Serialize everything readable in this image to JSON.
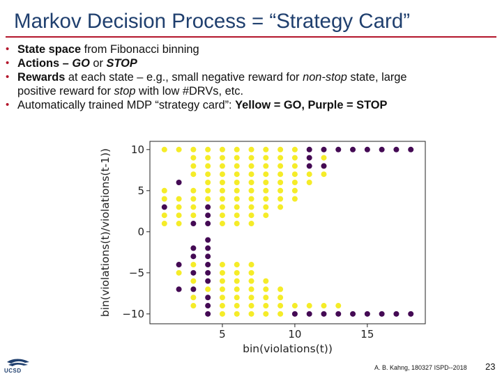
{
  "slide": {
    "title": "Markov Decision Process = “Strategy Card”",
    "bullets": [
      {
        "parts": [
          {
            "text": "State space",
            "style": "b"
          },
          {
            "text": " from Fibonacci binning",
            "style": ""
          }
        ]
      },
      {
        "parts": [
          {
            "text": "Actions – ",
            "style": "b"
          },
          {
            "text": "GO",
            "style": "bi"
          },
          {
            "text": " or ",
            "style": ""
          },
          {
            "text": "STOP",
            "style": "bi"
          }
        ]
      },
      {
        "parts": [
          {
            "text": "Rewards",
            "style": "b"
          },
          {
            "text": " at each state – e.g., small negative reward for ",
            "style": ""
          },
          {
            "text": "non-stop",
            "style": "i"
          },
          {
            "text": " state, large",
            "style": ""
          },
          {
            "text": "positive reward for ",
            "style": "",
            "newline": true
          },
          {
            "text": "stop",
            "style": "i"
          },
          {
            "text": " with low #DRVs, etc.",
            "style": ""
          }
        ]
      },
      {
        "parts": [
          {
            "text": "Automatically trained MDP “strategy card”: ",
            "style": ""
          },
          {
            "text": "Yellow = GO, Purple = STOP",
            "style": "b"
          }
        ]
      }
    ],
    "footer": "A. B. Kahng, 180327 ISPD--2018",
    "page_number": "23",
    "logo_text": "UCSD",
    "colors": {
      "title": "#1f3f6e",
      "rule": "#b3162b",
      "go": "#f5ec28",
      "stop": "#440a54"
    }
  },
  "chart_data": {
    "type": "scatter",
    "xlabel": "bin(violations(t))",
    "ylabel": "bin(violations(t)/violations(t-1))",
    "xticks": [
      5,
      10,
      15
    ],
    "yticks": [
      10,
      5,
      0,
      -5,
      -10
    ],
    "xlim": [
      0,
      19
    ],
    "ylim": [
      -11.2,
      11.0
    ],
    "grid": false,
    "legend": "",
    "series": [
      {
        "label": "GO",
        "color": "#f5ec28",
        "points": [
          [
            1,
            10
          ],
          [
            2,
            10
          ],
          [
            3,
            10
          ],
          [
            4,
            10
          ],
          [
            5,
            10
          ],
          [
            6,
            10
          ],
          [
            7,
            10
          ],
          [
            8,
            10
          ],
          [
            9,
            10
          ],
          [
            10,
            10
          ],
          [
            3,
            9
          ],
          [
            4,
            9
          ],
          [
            5,
            9
          ],
          [
            6,
            9
          ],
          [
            7,
            9
          ],
          [
            8,
            9
          ],
          [
            9,
            9
          ],
          [
            10,
            9
          ],
          [
            12,
            9
          ],
          [
            3,
            8
          ],
          [
            4,
            8
          ],
          [
            5,
            8
          ],
          [
            6,
            8
          ],
          [
            7,
            8
          ],
          [
            8,
            8
          ],
          [
            9,
            8
          ],
          [
            10,
            8
          ],
          [
            12,
            8
          ],
          [
            3,
            7
          ],
          [
            4,
            7
          ],
          [
            5,
            7
          ],
          [
            6,
            7
          ],
          [
            7,
            7
          ],
          [
            8,
            7
          ],
          [
            9,
            7
          ],
          [
            10,
            7
          ],
          [
            11,
            7
          ],
          [
            12,
            7
          ],
          [
            4,
            6
          ],
          [
            5,
            6
          ],
          [
            6,
            6
          ],
          [
            7,
            6
          ],
          [
            8,
            6
          ],
          [
            9,
            6
          ],
          [
            10,
            6
          ],
          [
            11,
            6
          ],
          [
            1,
            5
          ],
          [
            3,
            5
          ],
          [
            4,
            5
          ],
          [
            5,
            5
          ],
          [
            6,
            5
          ],
          [
            7,
            5
          ],
          [
            8,
            5
          ],
          [
            9,
            5
          ],
          [
            10,
            5
          ],
          [
            1,
            4
          ],
          [
            2,
            4
          ],
          [
            3,
            4
          ],
          [
            4,
            4
          ],
          [
            5,
            4
          ],
          [
            6,
            4
          ],
          [
            7,
            4
          ],
          [
            8,
            4
          ],
          [
            9,
            4
          ],
          [
            10,
            4
          ],
          [
            2,
            3
          ],
          [
            3,
            3
          ],
          [
            5,
            3
          ],
          [
            6,
            3
          ],
          [
            7,
            3
          ],
          [
            8,
            3
          ],
          [
            9,
            3
          ],
          [
            1,
            2
          ],
          [
            2,
            2
          ],
          [
            3,
            2
          ],
          [
            5,
            2
          ],
          [
            6,
            2
          ],
          [
            7,
            2
          ],
          [
            8,
            2
          ],
          [
            1,
            1
          ],
          [
            2,
            1
          ],
          [
            5,
            1
          ],
          [
            6,
            1
          ],
          [
            7,
            1
          ],
          [
            2,
            -5
          ],
          [
            3,
            -4
          ],
          [
            3,
            -6
          ],
          [
            5,
            -4
          ],
          [
            6,
            -4
          ],
          [
            7,
            -4
          ],
          [
            5,
            -5
          ],
          [
            6,
            -5
          ],
          [
            7,
            -5
          ],
          [
            5,
            -6
          ],
          [
            6,
            -6
          ],
          [
            7,
            -6
          ],
          [
            8,
            -6
          ],
          [
            4,
            -7
          ],
          [
            5,
            -7
          ],
          [
            6,
            -7
          ],
          [
            7,
            -7
          ],
          [
            8,
            -7
          ],
          [
            9,
            -7
          ],
          [
            3,
            -8
          ],
          [
            5,
            -8
          ],
          [
            6,
            -8
          ],
          [
            7,
            -8
          ],
          [
            8,
            -8
          ],
          [
            9,
            -8
          ],
          [
            3,
            -9
          ],
          [
            5,
            -9
          ],
          [
            6,
            -9
          ],
          [
            7,
            -9
          ],
          [
            8,
            -9
          ],
          [
            9,
            -9
          ],
          [
            10,
            -9
          ],
          [
            11,
            -9
          ],
          [
            12,
            -9
          ],
          [
            13,
            -9
          ],
          [
            5,
            -10
          ],
          [
            6,
            -10
          ],
          [
            7,
            -10
          ],
          [
            8,
            -10
          ],
          [
            9,
            -10
          ]
        ]
      },
      {
        "label": "STOP",
        "color": "#440a54",
        "points": [
          [
            11,
            10
          ],
          [
            12,
            10
          ],
          [
            13,
            10
          ],
          [
            14,
            10
          ],
          [
            15,
            10
          ],
          [
            16,
            10
          ],
          [
            17,
            10
          ],
          [
            18,
            10
          ],
          [
            11,
            9
          ],
          [
            11,
            8
          ],
          [
            12,
            8
          ],
          [
            2,
            6
          ],
          [
            1,
            3
          ],
          [
            4,
            3
          ],
          [
            4,
            2
          ],
          [
            3,
            1
          ],
          [
            4,
            1
          ],
          [
            4,
            -1
          ],
          [
            3,
            -2
          ],
          [
            4,
            -2
          ],
          [
            3,
            -3
          ],
          [
            4,
            -3
          ],
          [
            2,
            -4
          ],
          [
            4,
            -4
          ],
          [
            3,
            -5
          ],
          [
            4,
            -5
          ],
          [
            4,
            -6
          ],
          [
            2,
            -7
          ],
          [
            3,
            -7
          ],
          [
            4,
            -8
          ],
          [
            4,
            -9
          ],
          [
            4,
            -10
          ],
          [
            10,
            -10
          ],
          [
            11,
            -10
          ],
          [
            12,
            -10
          ],
          [
            13,
            -10
          ],
          [
            14,
            -10
          ],
          [
            15,
            -10
          ],
          [
            16,
            -10
          ],
          [
            17,
            -10
          ],
          [
            18,
            -10
          ]
        ]
      }
    ]
  }
}
